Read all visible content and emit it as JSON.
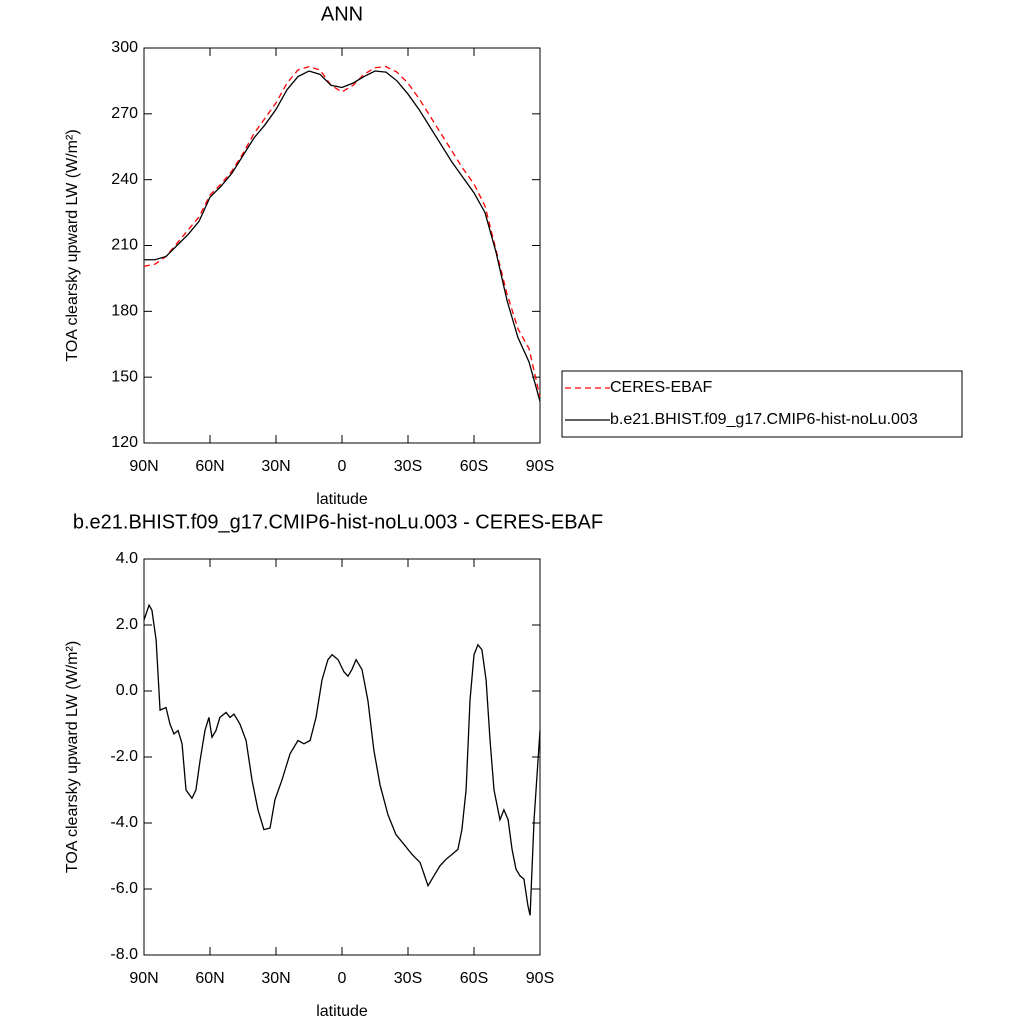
{
  "chart_data": [
    {
      "type": "line",
      "title": "ANN",
      "x_label": "latitude",
      "y_label": "TOA clearsky upward LW (W/m²)",
      "x": [
        90,
        85,
        80,
        75,
        70,
        65,
        60,
        55,
        50,
        45,
        40,
        35,
        30,
        25,
        20,
        15,
        10,
        5,
        0,
        -5,
        -10,
        -15,
        -20,
        -25,
        -30,
        -35,
        -40,
        -45,
        -50,
        -55,
        -60,
        -65,
        -70,
        -75,
        -80,
        -85,
        -90
      ],
      "series": [
        {
          "name": "CERES-EBAF",
          "color": "#ff0000",
          "line_style": "dashed",
          "values": [
            200.5,
            201.5,
            205,
            211,
            217,
            223,
            233,
            238,
            244,
            252,
            261,
            268,
            275,
            284,
            290,
            291.5,
            290,
            283,
            280,
            283,
            288,
            291,
            291.5,
            289,
            284,
            277,
            269,
            261,
            253,
            245,
            238,
            228,
            208,
            188,
            172,
            163,
            141
          ]
        },
        {
          "name": "b.e21.BHIST.f09_g17.CMIP6-hist-noLu.003",
          "color": "#000000",
          "line_style": "solid",
          "values": [
            203.5,
            203.5,
            205,
            210,
            215,
            221,
            232,
            237,
            243,
            251,
            259,
            265,
            272,
            281,
            287,
            289.5,
            288,
            283,
            282,
            284,
            287,
            289.5,
            289,
            285,
            279,
            272,
            264,
            256,
            248,
            241,
            234,
            225,
            207,
            185,
            168,
            157,
            139
          ]
        }
      ],
      "xlim": [
        90,
        -90
      ],
      "xticks": [
        {
          "value": 90,
          "label": "90N"
        },
        {
          "value": 60,
          "label": "60N"
        },
        {
          "value": 30,
          "label": "30N"
        },
        0,
        {
          "value": -30,
          "label": "30S"
        },
        {
          "value": -60,
          "label": "60S"
        },
        {
          "value": -90,
          "label": "90S"
        }
      ],
      "ylim": [
        120,
        300
      ],
      "yticks": [
        120,
        150,
        180,
        210,
        240,
        270,
        300
      ],
      "legend": "right"
    },
    {
      "type": "line",
      "title": "b.e21.BHIST.f09_g17.CMIP6-hist-noLu.003 - CERES-EBAF",
      "x_label": "latitude",
      "y_label": "TOA clearsky upward LW (W/m²)",
      "x": [
        90,
        87.7,
        86.4,
        84.5,
        82.7,
        80,
        78.2,
        76.4,
        74.5,
        72.7,
        70.9,
        68.2,
        66.4,
        64.5,
        62.3,
        60.5,
        59.1,
        57.3,
        55.5,
        52.7,
        50.9,
        49.1,
        46.4,
        43.6,
        40.9,
        38.2,
        35.5,
        32.7,
        30.5,
        27.3,
        23.6,
        20,
        17.3,
        14.5,
        11.8,
        9.1,
        6.4,
        4.5,
        1.8,
        -0.9,
        -2.7,
        -4.5,
        -6.4,
        -9.1,
        -11.8,
        -14.5,
        -17.3,
        -20.9,
        -24.5,
        -28.2,
        -31.8,
        -35.5,
        -39.1,
        -41.8,
        -44.5,
        -47.3,
        -50,
        -52.7,
        -54.5,
        -56.4,
        -58.2,
        -60,
        -61.8,
        -63.6,
        -65.5,
        -67.3,
        -69.1,
        -71.8,
        -73.6,
        -75.5,
        -77.3,
        -79.1,
        -80.9,
        -82.7,
        -84.5,
        -85.5,
        -87.3,
        -90
      ],
      "color": "#000000",
      "values": [
        2.15,
        2.6,
        2.45,
        1.55,
        -0.58,
        -0.5,
        -1.0,
        -1.3,
        -1.2,
        -1.6,
        -3.0,
        -3.25,
        -3.0,
        -2.1,
        -1.2,
        -0.8,
        -1.4,
        -1.2,
        -0.8,
        -0.65,
        -0.8,
        -0.7,
        -1.0,
        -1.5,
        -2.7,
        -3.6,
        -4.2,
        -4.15,
        -3.3,
        -2.7,
        -1.9,
        -1.5,
        -1.6,
        -1.5,
        -0.8,
        0.33,
        0.95,
        1.1,
        0.95,
        0.58,
        0.45,
        0.65,
        0.95,
        0.65,
        -0.3,
        -1.8,
        -2.85,
        -3.75,
        -4.35,
        -4.65,
        -4.95,
        -5.2,
        -5.9,
        -5.6,
        -5.3,
        -5.1,
        -4.95,
        -4.8,
        -4.2,
        -3.0,
        -0.27,
        1.1,
        1.4,
        1.25,
        0.33,
        -1.5,
        -3.0,
        -3.9,
        -3.6,
        -3.9,
        -4.8,
        -5.4,
        -5.6,
        -5.7,
        -6.5,
        -6.8,
        -3.9,
        -1.2
      ],
      "xlim": [
        90,
        -90
      ],
      "xticks": [
        {
          "value": 90,
          "label": "90N"
        },
        {
          "value": 60,
          "label": "60N"
        },
        {
          "value": 30,
          "label": "30N"
        },
        0,
        {
          "value": -30,
          "label": "30S"
        },
        {
          "value": -60,
          "label": "60S"
        },
        {
          "value": -90,
          "label": "90S"
        }
      ],
      "ylim": [
        -8,
        4
      ],
      "yticks": [
        {
          "value": -8,
          "label": "-8.0"
        },
        {
          "value": -6,
          "label": "-6.0"
        },
        {
          "value": -4,
          "label": "-4.0"
        },
        {
          "value": -2,
          "label": "-2.0"
        },
        {
          "value": 0,
          "label": "0.0"
        },
        {
          "value": 2,
          "label": "2.0"
        },
        {
          "value": 4,
          "label": "4.0"
        }
      ]
    }
  ]
}
